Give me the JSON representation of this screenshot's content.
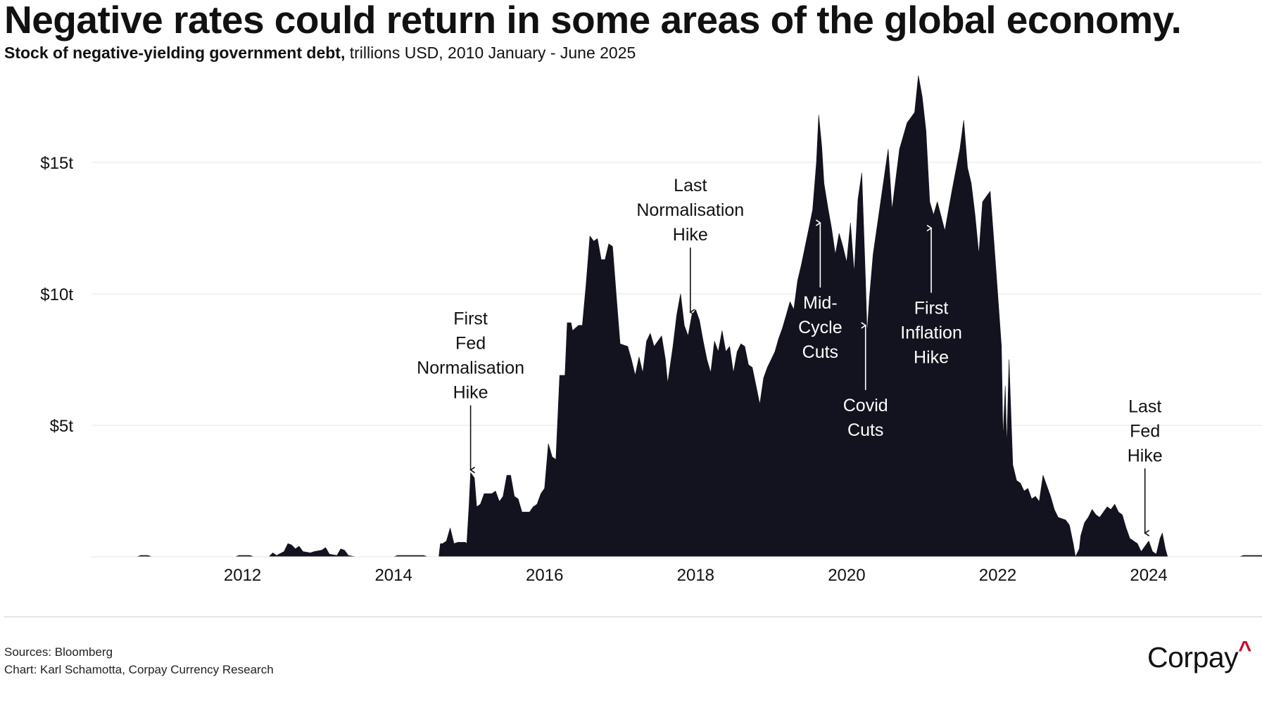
{
  "title": "Negative rates could return in some areas of the global economy.",
  "subtitle": {
    "lead": "Stock of negative-yielding government debt,",
    "rest": " trillions USD, 2010 January - June 2025"
  },
  "chart_data": {
    "type": "area",
    "title": "Negative rates could return in some areas of the global economy.",
    "subtitle": "Stock of negative-yielding government debt, trillions USD, 2010 January - June 2025",
    "xlabel": "",
    "ylabel": "",
    "xlim": [
      2010.0,
      2025.5
    ],
    "ylim": [
      0,
      18.5
    ],
    "grid": "horizontal",
    "y_ticks": [
      {
        "value": 5,
        "label": "$5t"
      },
      {
        "value": 10,
        "label": "$10t"
      },
      {
        "value": 15,
        "label": "$15t"
      }
    ],
    "x_ticks": [
      {
        "value": 2012,
        "label": "2012"
      },
      {
        "value": 2014,
        "label": "2014"
      },
      {
        "value": 2016,
        "label": "2016"
      },
      {
        "value": 2018,
        "label": "2018"
      },
      {
        "value": 2020,
        "label": "2020"
      },
      {
        "value": 2022,
        "label": "2022"
      },
      {
        "value": 2024,
        "label": "2024"
      }
    ],
    "colors": {
      "area": "#13131f",
      "grid": "#e6e6e6",
      "text": "#111111",
      "arrow_dark": "#111111",
      "arrow_light": "#ffffff"
    },
    "series": [
      {
        "name": "Negative-yielding government debt (trillions USD)",
        "points": [
          [
            2010.0,
            0
          ],
          [
            2010.6,
            0
          ],
          [
            2010.65,
            0.05
          ],
          [
            2010.75,
            0.05
          ],
          [
            2010.8,
            0
          ],
          [
            2011.9,
            0
          ],
          [
            2011.95,
            0.05
          ],
          [
            2012.1,
            0.05
          ],
          [
            2012.15,
            0
          ],
          [
            2012.35,
            0
          ],
          [
            2012.4,
            0.15
          ],
          [
            2012.45,
            0.05
          ],
          [
            2012.55,
            0.2
          ],
          [
            2012.6,
            0.5
          ],
          [
            2012.65,
            0.45
          ],
          [
            2012.7,
            0.3
          ],
          [
            2012.75,
            0.4
          ],
          [
            2012.8,
            0.2
          ],
          [
            2012.9,
            0.15
          ],
          [
            2012.95,
            0.2
          ],
          [
            2013.05,
            0.25
          ],
          [
            2013.1,
            0.35
          ],
          [
            2013.15,
            0.1
          ],
          [
            2013.25,
            0.05
          ],
          [
            2013.3,
            0.3
          ],
          [
            2013.35,
            0.25
          ],
          [
            2013.4,
            0.05
          ],
          [
            2013.5,
            0
          ],
          [
            2014.0,
            0
          ],
          [
            2014.05,
            0.05
          ],
          [
            2014.4,
            0.05
          ],
          [
            2014.45,
            0
          ],
          [
            2014.6,
            0
          ],
          [
            2014.62,
            0.5
          ],
          [
            2014.65,
            0.5
          ],
          [
            2014.7,
            0.6
          ],
          [
            2014.75,
            1.1
          ],
          [
            2014.8,
            0.5
          ],
          [
            2014.85,
            0.55
          ],
          [
            2014.95,
            0.55
          ],
          [
            2014.97,
            0.5
          ],
          [
            2015.0,
            2.0
          ],
          [
            2015.02,
            3.2
          ],
          [
            2015.07,
            3.0
          ],
          [
            2015.1,
            1.9
          ],
          [
            2015.15,
            2.0
          ],
          [
            2015.2,
            2.4
          ],
          [
            2015.3,
            2.4
          ],
          [
            2015.35,
            2.5
          ],
          [
            2015.4,
            2.1
          ],
          [
            2015.45,
            2.3
          ],
          [
            2015.5,
            3.1
          ],
          [
            2015.55,
            3.1
          ],
          [
            2015.6,
            2.3
          ],
          [
            2015.65,
            2.2
          ],
          [
            2015.7,
            1.7
          ],
          [
            2015.8,
            1.7
          ],
          [
            2015.85,
            1.9
          ],
          [
            2015.9,
            2.0
          ],
          [
            2015.95,
            2.4
          ],
          [
            2016.0,
            2.6
          ],
          [
            2016.05,
            4.3
          ],
          [
            2016.1,
            3.8
          ],
          [
            2016.15,
            3.7
          ],
          [
            2016.2,
            6.9
          ],
          [
            2016.27,
            6.9
          ],
          [
            2016.3,
            8.9
          ],
          [
            2016.35,
            8.9
          ],
          [
            2016.37,
            8.6
          ],
          [
            2016.45,
            8.8
          ],
          [
            2016.5,
            8.8
          ],
          [
            2016.55,
            10.4
          ],
          [
            2016.6,
            12.2
          ],
          [
            2016.65,
            12.0
          ],
          [
            2016.7,
            12.1
          ],
          [
            2016.75,
            11.3
          ],
          [
            2016.8,
            11.3
          ],
          [
            2016.85,
            11.9
          ],
          [
            2016.9,
            11.8
          ],
          [
            2016.95,
            9.9
          ],
          [
            2017.0,
            8.1
          ],
          [
            2017.1,
            8.0
          ],
          [
            2017.15,
            7.5
          ],
          [
            2017.2,
            6.9
          ],
          [
            2017.25,
            7.6
          ],
          [
            2017.3,
            7.0
          ],
          [
            2017.35,
            8.2
          ],
          [
            2017.4,
            8.5
          ],
          [
            2017.45,
            8.0
          ],
          [
            2017.5,
            8.2
          ],
          [
            2017.55,
            8.4
          ],
          [
            2017.6,
            7.5
          ],
          [
            2017.63,
            6.6
          ],
          [
            2017.7,
            8.0
          ],
          [
            2017.75,
            9.2
          ],
          [
            2017.8,
            10.0
          ],
          [
            2017.85,
            8.8
          ],
          [
            2017.9,
            8.4
          ],
          [
            2017.95,
            9.2
          ],
          [
            2018.0,
            9.4
          ],
          [
            2018.05,
            9.0
          ],
          [
            2018.1,
            8.2
          ],
          [
            2018.15,
            7.5
          ],
          [
            2018.2,
            7.0
          ],
          [
            2018.25,
            8.2
          ],
          [
            2018.3,
            7.8
          ],
          [
            2018.35,
            8.6
          ],
          [
            2018.4,
            7.8
          ],
          [
            2018.45,
            8.0
          ],
          [
            2018.5,
            7.0
          ],
          [
            2018.55,
            7.8
          ],
          [
            2018.6,
            8.1
          ],
          [
            2018.65,
            8.0
          ],
          [
            2018.7,
            7.3
          ],
          [
            2018.75,
            7.2
          ],
          [
            2018.8,
            6.5
          ],
          [
            2018.85,
            5.8
          ],
          [
            2018.9,
            6.8
          ],
          [
            2018.95,
            7.2
          ],
          [
            2019.0,
            7.5
          ],
          [
            2019.05,
            7.8
          ],
          [
            2019.1,
            8.3
          ],
          [
            2019.15,
            8.7
          ],
          [
            2019.2,
            9.2
          ],
          [
            2019.25,
            9.7
          ],
          [
            2019.3,
            9.4
          ],
          [
            2019.35,
            10.5
          ],
          [
            2019.4,
            11.1
          ],
          [
            2019.45,
            11.8
          ],
          [
            2019.5,
            12.5
          ],
          [
            2019.55,
            13.2
          ],
          [
            2019.6,
            15.0
          ],
          [
            2019.63,
            16.8
          ],
          [
            2019.67,
            15.6
          ],
          [
            2019.7,
            14.2
          ],
          [
            2019.75,
            13.3
          ],
          [
            2019.8,
            12.5
          ],
          [
            2019.85,
            11.5
          ],
          [
            2019.9,
            12.3
          ],
          [
            2019.95,
            11.8
          ],
          [
            2020.0,
            11.2
          ],
          [
            2020.05,
            12.7
          ],
          [
            2020.1,
            10.8
          ],
          [
            2020.15,
            13.6
          ],
          [
            2020.2,
            14.6
          ],
          [
            2020.25,
            10.5
          ],
          [
            2020.27,
            8.5
          ],
          [
            2020.3,
            9.8
          ],
          [
            2020.35,
            11.5
          ],
          [
            2020.45,
            13.5
          ],
          [
            2020.55,
            15.5
          ],
          [
            2020.6,
            13.2
          ],
          [
            2020.7,
            15.5
          ],
          [
            2020.8,
            16.5
          ],
          [
            2020.9,
            16.9
          ],
          [
            2020.95,
            18.3
          ],
          [
            2021.0,
            17.5
          ],
          [
            2021.05,
            16.2
          ],
          [
            2021.1,
            13.5
          ],
          [
            2021.15,
            13.0
          ],
          [
            2021.2,
            13.5
          ],
          [
            2021.3,
            12.4
          ],
          [
            2021.35,
            13.2
          ],
          [
            2021.4,
            14.0
          ],
          [
            2021.5,
            15.5
          ],
          [
            2021.55,
            16.6
          ],
          [
            2021.6,
            14.8
          ],
          [
            2021.65,
            14.2
          ],
          [
            2021.7,
            13.0
          ],
          [
            2021.75,
            11.5
          ],
          [
            2021.8,
            13.5
          ],
          [
            2021.85,
            13.7
          ],
          [
            2021.9,
            13.9
          ],
          [
            2021.95,
            12.0
          ],
          [
            2022.0,
            10.0
          ],
          [
            2022.05,
            8.0
          ],
          [
            2022.07,
            4.5
          ],
          [
            2022.1,
            6.5
          ],
          [
            2022.12,
            4.2
          ],
          [
            2022.15,
            7.5
          ],
          [
            2022.2,
            3.5
          ],
          [
            2022.25,
            2.9
          ],
          [
            2022.3,
            2.8
          ],
          [
            2022.35,
            2.5
          ],
          [
            2022.4,
            2.6
          ],
          [
            2022.45,
            2.2
          ],
          [
            2022.5,
            2.3
          ],
          [
            2022.55,
            2.1
          ],
          [
            2022.6,
            3.1
          ],
          [
            2022.7,
            2.3
          ],
          [
            2022.75,
            1.8
          ],
          [
            2022.8,
            1.5
          ],
          [
            2022.9,
            1.4
          ],
          [
            2022.95,
            1.2
          ],
          [
            2023.0,
            0.5
          ],
          [
            2023.03,
            0
          ],
          [
            2023.08,
            0.3
          ],
          [
            2023.1,
            0.8
          ],
          [
            2023.15,
            1.3
          ],
          [
            2023.2,
            1.5
          ],
          [
            2023.25,
            1.8
          ],
          [
            2023.3,
            1.6
          ],
          [
            2023.35,
            1.5
          ],
          [
            2023.4,
            1.7
          ],
          [
            2023.45,
            1.9
          ],
          [
            2023.5,
            1.8
          ],
          [
            2023.55,
            2.0
          ],
          [
            2023.6,
            1.7
          ],
          [
            2023.65,
            1.6
          ],
          [
            2023.7,
            1.1
          ],
          [
            2023.75,
            0.7
          ],
          [
            2023.8,
            0.6
          ],
          [
            2023.85,
            0.5
          ],
          [
            2023.9,
            0.2
          ],
          [
            2023.95,
            0.4
          ],
          [
            2024.0,
            0.6
          ],
          [
            2024.05,
            0.2
          ],
          [
            2024.1,
            0.1
          ],
          [
            2024.15,
            0.7
          ],
          [
            2024.18,
            0.9
          ],
          [
            2024.22,
            0.3
          ],
          [
            2024.25,
            0
          ],
          [
            2025.2,
            0
          ],
          [
            2025.25,
            0.05
          ],
          [
            2025.5,
            0.05
          ],
          [
            2025.5,
            0
          ]
        ]
      }
    ],
    "annotations": [
      {
        "id": "first-fed-normalisation-hike",
        "lines": [
          "First",
          "Fed",
          "Normalisation",
          "Hike"
        ],
        "x": 2015.02,
        "tip_y": 3.3,
        "direction": "down",
        "color": "dark"
      },
      {
        "id": "last-normalisation-hike",
        "lines": [
          "Last",
          "Normalisation",
          "Hike"
        ],
        "x": 2017.93,
        "tip_y": 9.3,
        "direction": "down",
        "color": "dark"
      },
      {
        "id": "mid-cycle-cuts",
        "lines": [
          "Mid-",
          "Cycle",
          "Cuts"
        ],
        "x": 2019.65,
        "tip_y": 12.7,
        "direction": "up",
        "color": "light"
      },
      {
        "id": "covid-cuts",
        "lines": [
          "Covid",
          "Cuts"
        ],
        "x": 2020.25,
        "tip_y": 8.8,
        "direction": "up",
        "color": "light"
      },
      {
        "id": "first-inflation-hike",
        "lines": [
          "First",
          "Inflation",
          "Hike"
        ],
        "x": 2021.12,
        "tip_y": 12.5,
        "direction": "up",
        "color": "light"
      },
      {
        "id": "last-fed-hike",
        "lines": [
          "Last",
          "Fed",
          "Hike"
        ],
        "x": 2023.95,
        "tip_y": 0.9,
        "direction": "down",
        "color": "dark"
      }
    ]
  },
  "footer": {
    "sources": "Sources: Bloomberg",
    "credit": "Chart: Karl Schamotta, Corpay Currency Research",
    "logo_text": "Corpay",
    "logo_mark": "^"
  }
}
